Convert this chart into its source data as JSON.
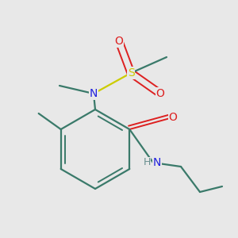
{
  "bg_color": "#e8e8e8",
  "bond_color": "#3a7a6a",
  "N_color": "#2020dd",
  "N_gray_color": "#6a9090",
  "O_color": "#dd2020",
  "S_color": "#cccc00",
  "label_N": "N",
  "label_H": "H",
  "label_O": "O",
  "label_S": "S",
  "font_size": 9,
  "lw": 1.6,
  "lw_inner": 1.4
}
